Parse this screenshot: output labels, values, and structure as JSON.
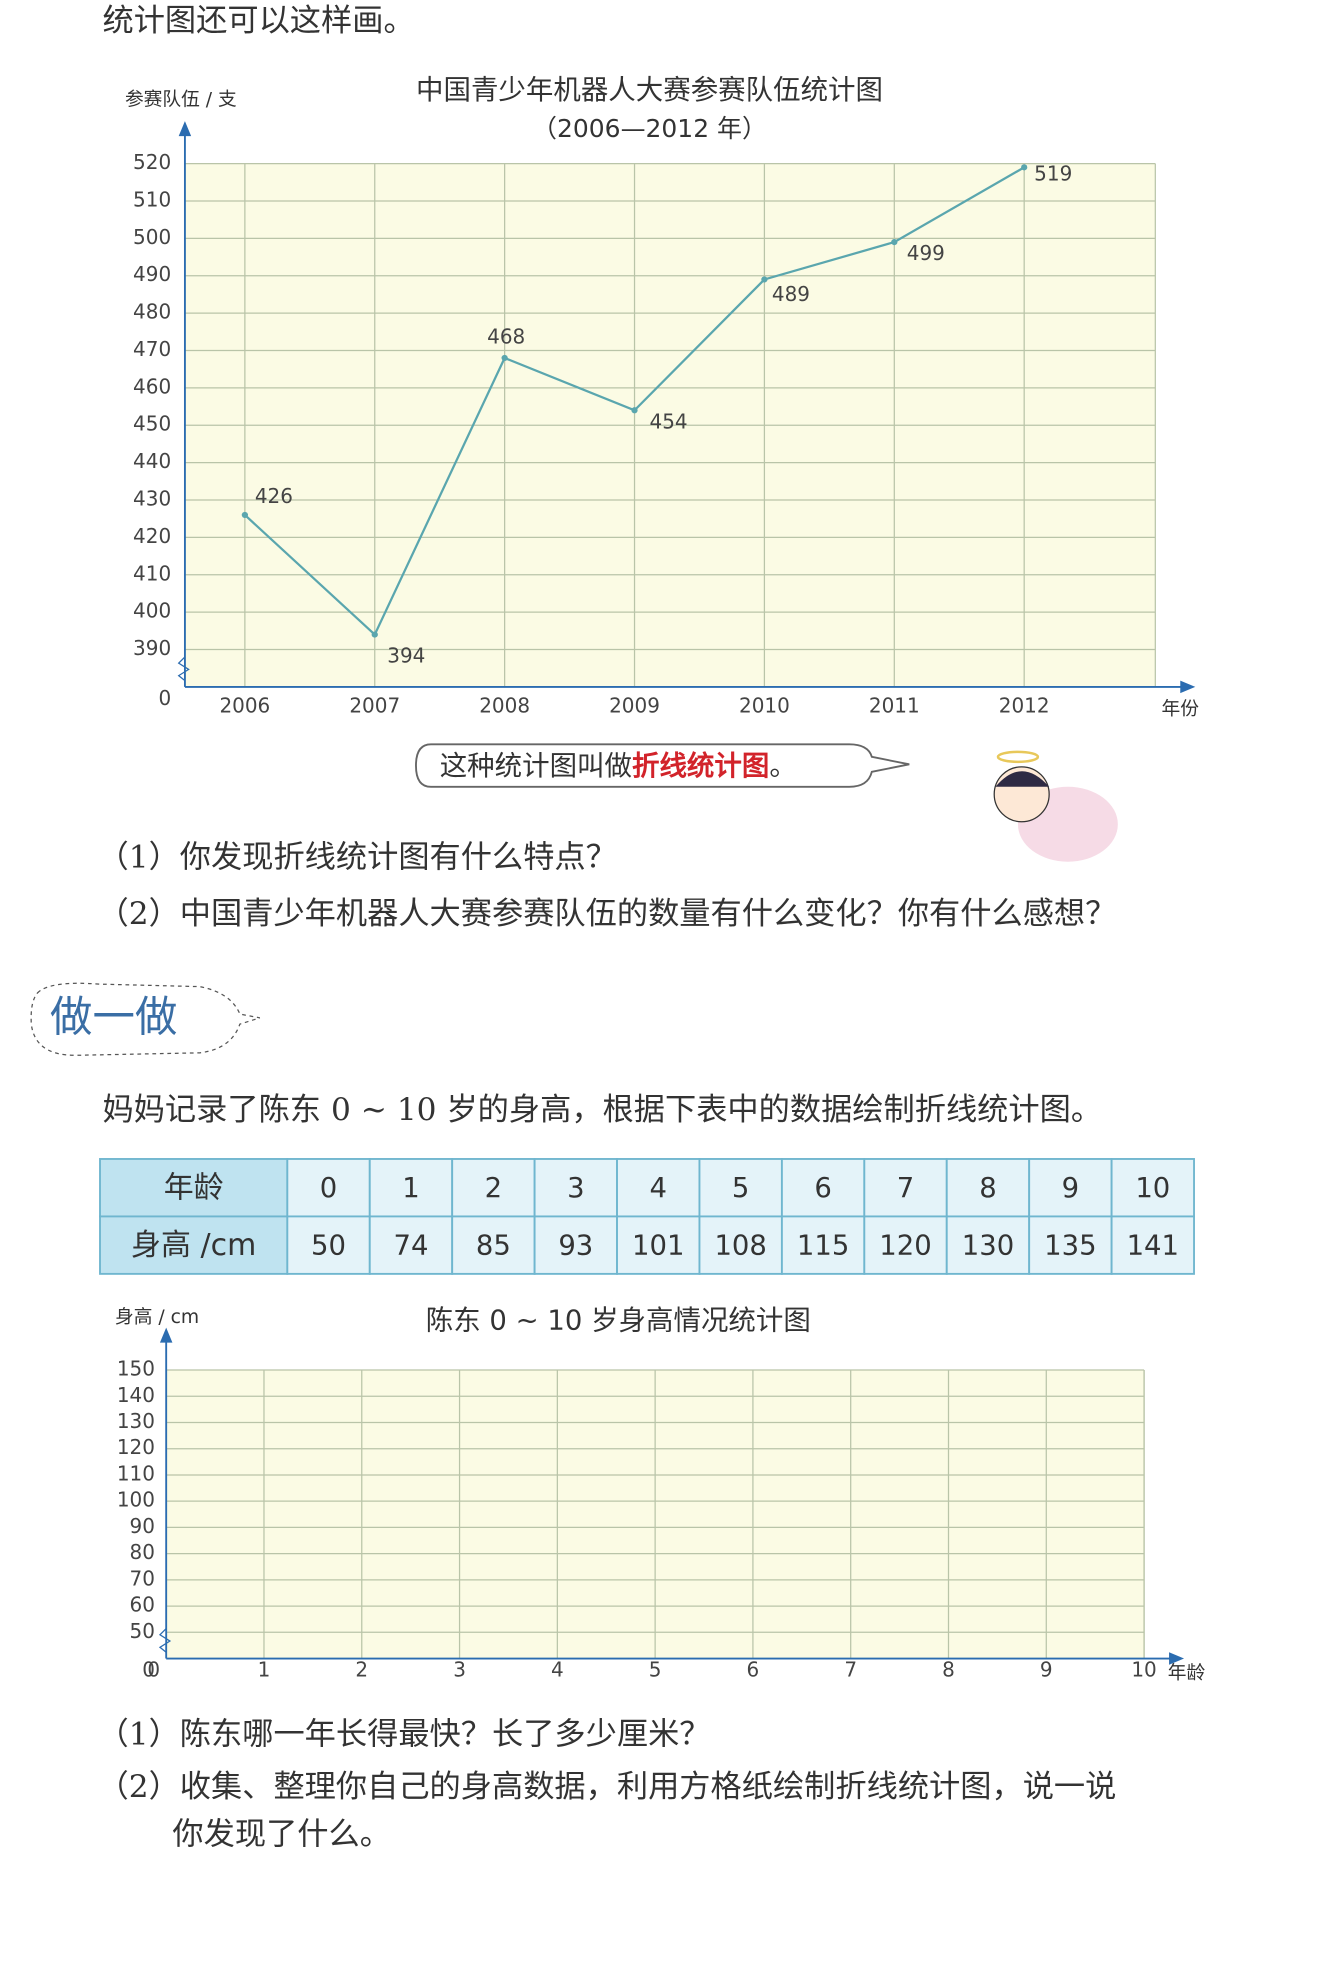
{
  "intro": "统计图还可以这样画。",
  "chart_data": [
    {
      "type": "line",
      "title": "中国青少年机器人大赛参赛队伍统计图",
      "subtitle": "（2006—2012 年）",
      "y_label": "参赛队伍 / 支",
      "x_label": "年份",
      "categories": [
        "2006",
        "2007",
        "2008",
        "2009",
        "2010",
        "2011",
        "2012"
      ],
      "series": [
        {
          "name": "参赛队伍",
          "color": "#5aa6ae",
          "values": [
            426,
            394,
            468,
            454,
            489,
            499,
            519
          ]
        }
      ],
      "ylim": [
        0,
        520
      ],
      "yticks": [
        0,
        390,
        400,
        410,
        420,
        430,
        440,
        450,
        460,
        470,
        480,
        490,
        500,
        510,
        520
      ],
      "axis_break": true,
      "grid": true,
      "data_labels": true
    },
    {
      "type": "line",
      "title": "陈东 0 ~ 10 岁身高情况统计图",
      "y_label": "身高 / cm",
      "x_label": "年龄",
      "x": [],
      "series": [],
      "xlim": [
        0,
        10
      ],
      "xticks": [
        0,
        1,
        2,
        3,
        4,
        5,
        6,
        7,
        8,
        9,
        10
      ],
      "ylim": [
        0,
        150
      ],
      "yticks": [
        0,
        50,
        60,
        70,
        80,
        90,
        100,
        110,
        120,
        130,
        140,
        150
      ],
      "axis_break": true,
      "grid": true
    }
  ],
  "callout": {
    "before": "这种统计图叫做",
    "emphasis": "折线统计图",
    "after": "。"
  },
  "questions_1": [
    "（1）你发现折线统计图有什么特点？",
    "（2）中国青少年机器人大赛参赛队伍的数量有什么变化？你有什么感想？"
  ],
  "section_title": "做一做",
  "task": "妈妈记录了陈东 0 ~ 10 岁的身高，根据下表中的数据绘制折线统计图。",
  "table": {
    "rows": [
      [
        "年龄",
        "0",
        "1",
        "2",
        "3",
        "4",
        "5",
        "6",
        "7",
        "8",
        "9",
        "10"
      ],
      [
        "身高 /cm",
        "50",
        "74",
        "85",
        "93",
        "101",
        "108",
        "115",
        "120",
        "130",
        "135",
        "141"
      ]
    ]
  },
  "questions_2": [
    "（1）陈东哪一年长得最快？长了多少厘米？",
    "（2）收集、整理你自己的身高数据，利用方格纸绘制折线统计图，说一说",
    "你发现了什么。"
  ]
}
